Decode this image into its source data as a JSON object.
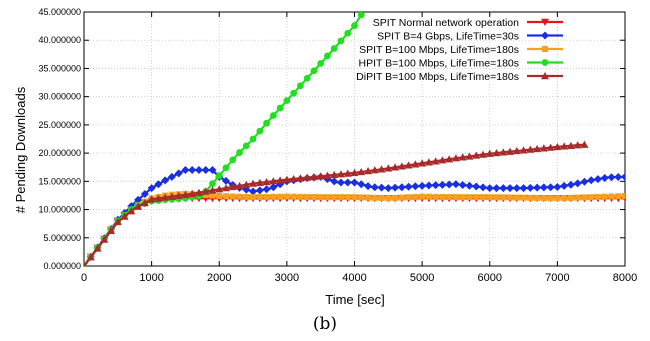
{
  "chart_data": {
    "type": "line",
    "xlabel": "Time [sec]",
    "ylabel": "# Pending Downloads",
    "xlim": [
      0,
      8000
    ],
    "ylim": [
      0,
      45
    ],
    "x_ticks": [
      0,
      1000,
      2000,
      3000,
      4000,
      5000,
      6000,
      7000,
      8000
    ],
    "y_ticks": [
      0,
      5,
      10,
      15,
      20,
      25,
      30,
      35,
      40,
      45
    ],
    "y_tick_labels": [
      "0.000000",
      "5.000000",
      "10.000000",
      "15.000000",
      "20.000000",
      "25.000000",
      "30.000000",
      "35.000000",
      "40.000000",
      "45.000000"
    ],
    "grid": true,
    "legend_position": "top-right",
    "series": [
      {
        "name": "SPIT Normal network operation",
        "color": "#e8141c",
        "marker": "triangle-down",
        "x": [
          0,
          500,
          750,
          1000,
          1250,
          1500,
          2000,
          2500,
          3000,
          3500,
          4000,
          4500,
          5000,
          5500,
          6000,
          6500,
          7000,
          7500,
          8000
        ],
        "y": [
          0,
          8,
          10.5,
          11.5,
          11.8,
          12,
          12,
          12,
          12,
          12,
          12,
          12,
          12,
          12,
          12,
          12,
          12,
          12,
          12
        ]
      },
      {
        "name": "SPIT B=4 Gbps, LifeTime=30s",
        "color": "#1a2fe0",
        "marker": "diamond",
        "x": [
          0,
          500,
          750,
          1000,
          1250,
          1500,
          1750,
          1900,
          2000,
          2250,
          2500,
          2750,
          3000,
          3250,
          3500,
          3750,
          4000,
          4250,
          4500,
          5000,
          5500,
          6000,
          6500,
          7000,
          7250,
          7500,
          7750,
          8000
        ],
        "y": [
          0,
          8.2,
          11.2,
          13.8,
          15.5,
          17,
          17,
          17,
          15.8,
          14,
          13.2,
          13.7,
          15,
          15.5,
          15.8,
          14.8,
          14.8,
          14,
          13.8,
          14.2,
          14.5,
          13.8,
          13.8,
          14,
          14.5,
          15.2,
          15.7,
          15.8
        ]
      },
      {
        "name": "SPIT B=100 Mbps, LifeTime=180s",
        "color": "#f5a020",
        "marker": "square",
        "x": [
          0,
          500,
          750,
          1000,
          1250,
          1500,
          2000,
          2500,
          3000,
          3500,
          4000,
          4500,
          5000,
          5500,
          6000,
          6500,
          7000,
          7500,
          8000
        ],
        "y": [
          0,
          8,
          10.5,
          12,
          12.6,
          12.8,
          12.4,
          12.2,
          12.3,
          12.2,
          12.2,
          12,
          12.3,
          12.2,
          12.2,
          12.1,
          12,
          12.2,
          12.4
        ]
      },
      {
        "name": "HPIT B=100 Mbps, LifeTime=180s",
        "color": "#22dd22",
        "marker": "circle",
        "x": [
          0,
          500,
          750,
          1000,
          1250,
          1500,
          1750,
          2000,
          2250,
          2500,
          2750,
          3000,
          3250,
          3500,
          3750,
          4000,
          4100
        ],
        "y": [
          0,
          8,
          10.5,
          11.5,
          11.8,
          12,
          12.5,
          16,
          19.5,
          22.5,
          26,
          29.3,
          32.6,
          35.9,
          39.2,
          42.6,
          44.5
        ]
      },
      {
        "name": "DiPIT B=100 Mbps, LifeTime=180s",
        "color": "#a82a2a",
        "marker": "triangle-up",
        "x": [
          0,
          500,
          750,
          1000,
          1500,
          2000,
          2500,
          3000,
          3500,
          4000,
          4500,
          5000,
          5500,
          6000,
          6500,
          7000,
          7400
        ],
        "y": [
          0,
          7.8,
          10.2,
          11.8,
          12.6,
          13.6,
          14.6,
          15.3,
          15.9,
          16.5,
          17.3,
          18.2,
          19.1,
          19.9,
          20.5,
          21.1,
          21.5
        ]
      }
    ]
  },
  "caption": "(b)"
}
